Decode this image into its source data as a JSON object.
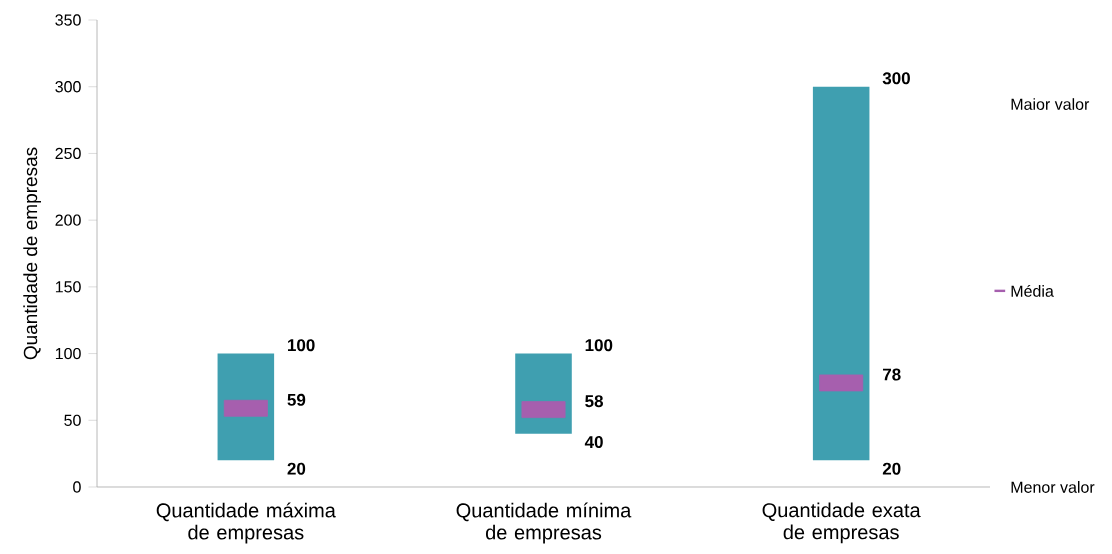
{
  "chart_data": {
    "type": "bar",
    "categories": [
      "Quantidade máxima de empresas",
      "Quantidade mínima de empresas",
      "Quantidade exata de empresas"
    ],
    "ylabel": "Quantidade de empresas",
    "ylim": [
      0,
      350
    ],
    "yticks": [
      0,
      50,
      100,
      150,
      200,
      250,
      300,
      350
    ],
    "legend": "right",
    "marker": "square",
    "series": [
      {
        "color": "#3f9fb0",
        "values": [
          80,
          60,
          280
        ],
        "base": [
          20,
          40,
          20
        ]
      },
      {
        "type": "scatter",
        "name": "Média",
        "color": "#a65fae",
        "values": [
          59,
          58,
          78
        ]
      }
    ],
    "annotations": [
      "Maior valor",
      "Menor valor",
      {
        "text": "100",
        "x": "Quantidade máxima de empresas",
        "y": 100
      },
      {
        "text": "59",
        "x": "Quantidade máxima de empresas",
        "y": 59
      },
      {
        "text": "20",
        "x": "Quantidade máxima de empresas",
        "y": 20
      },
      {
        "text": "100",
        "x": "Quantidade mínima de empresas",
        "y": 100
      },
      {
        "text": "58",
        "x": "Quantidade mínima de empresas",
        "y": 58
      },
      {
        "text": "40",
        "x": "Quantidade mínima de empresas",
        "y": 40
      },
      {
        "text": "300",
        "x": "Quantidade exata de empresas",
        "y": 300
      },
      {
        "text": "78",
        "x": "Quantidade exata de empresas",
        "y": 78
      },
      {
        "text": "20",
        "x": "Quantidade exata de empresas",
        "y": 20
      }
    ]
  }
}
